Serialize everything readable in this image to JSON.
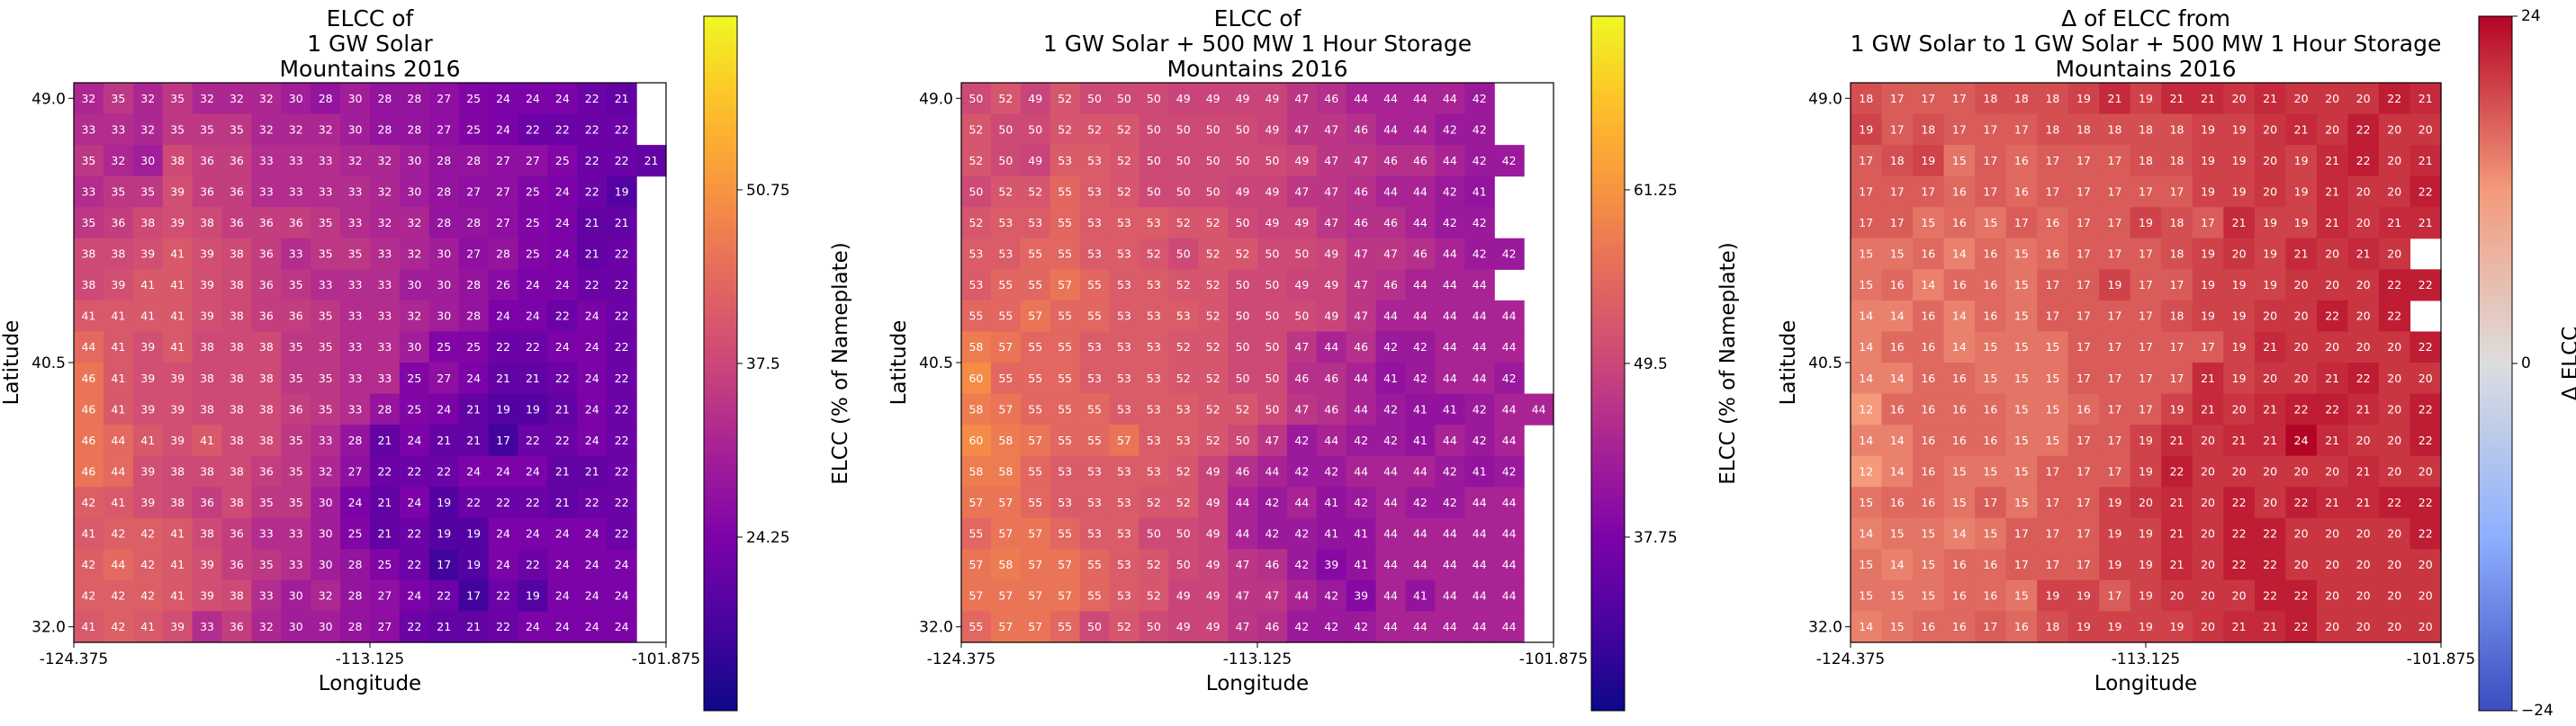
{
  "chart_data": [
    {
      "type": "heatmap",
      "title": [
        "ELCC of",
        "1 GW Solar",
        "Mountains 2016"
      ],
      "xlabel": "Longitude",
      "ylabel": "Latitude",
      "xticks": [
        "-124.375",
        "-113.125",
        "-101.875"
      ],
      "yticks": [
        "49.0",
        "40.5",
        "32.0"
      ],
      "colorbar": {
        "label": "ELCC (% of Nameplate)",
        "ticks": [
          "24.25",
          "37.5",
          "50.75"
        ],
        "range": [
          11.0,
          64.0
        ],
        "colormap": "plasma"
      },
      "values": [
        [
          32,
          35,
          32,
          35,
          32,
          32,
          32,
          30,
          28,
          30,
          28,
          28,
          27,
          25,
          24,
          24,
          24,
          22,
          21
        ],
        [
          33,
          33,
          32,
          35,
          35,
          35,
          32,
          32,
          32,
          30,
          28,
          28,
          27,
          25,
          24,
          22,
          22,
          22,
          22
        ],
        [
          35,
          32,
          30,
          38,
          36,
          36,
          33,
          33,
          33,
          32,
          32,
          30,
          28,
          28,
          27,
          27,
          25,
          22,
          22,
          21
        ],
        [
          33,
          35,
          35,
          39,
          36,
          36,
          33,
          33,
          33,
          33,
          32,
          30,
          28,
          27,
          27,
          25,
          24,
          22,
          19
        ],
        [
          35,
          36,
          38,
          39,
          38,
          36,
          36,
          36,
          35,
          33,
          32,
          32,
          28,
          28,
          27,
          25,
          24,
          21,
          21
        ],
        [
          38,
          38,
          39,
          41,
          39,
          38,
          36,
          33,
          35,
          35,
          33,
          32,
          30,
          27,
          28,
          25,
          24,
          21,
          22
        ],
        [
          38,
          39,
          41,
          41,
          39,
          38,
          36,
          35,
          33,
          33,
          33,
          30,
          30,
          28,
          26,
          24,
          24,
          22,
          22
        ],
        [
          41,
          41,
          41,
          41,
          39,
          38,
          36,
          36,
          35,
          33,
          33,
          32,
          30,
          28,
          24,
          24,
          22,
          24,
          22
        ],
        [
          44,
          41,
          39,
          41,
          38,
          38,
          38,
          35,
          35,
          33,
          33,
          30,
          25,
          25,
          22,
          22,
          24,
          24,
          22
        ],
        [
          46,
          41,
          39,
          39,
          38,
          38,
          38,
          35,
          35,
          33,
          33,
          25,
          27,
          24,
          21,
          21,
          22,
          24,
          22
        ],
        [
          46,
          41,
          39,
          39,
          38,
          38,
          38,
          36,
          35,
          33,
          28,
          25,
          24,
          21,
          19,
          19,
          21,
          24,
          22
        ],
        [
          46,
          44,
          41,
          39,
          41,
          38,
          38,
          35,
          33,
          28,
          21,
          24,
          21,
          21,
          17,
          22,
          22,
          24,
          22
        ],
        [
          46,
          44,
          39,
          38,
          38,
          38,
          36,
          35,
          32,
          27,
          22,
          22,
          22,
          24,
          24,
          24,
          21,
          21,
          22
        ],
        [
          42,
          41,
          39,
          38,
          36,
          38,
          35,
          35,
          30,
          24,
          21,
          24,
          19,
          22,
          22,
          22,
          21,
          22,
          22
        ],
        [
          41,
          42,
          42,
          41,
          38,
          36,
          33,
          33,
          30,
          25,
          21,
          22,
          19,
          19,
          24,
          24,
          24,
          24,
          22
        ],
        [
          42,
          44,
          42,
          41,
          39,
          36,
          35,
          33,
          30,
          28,
          25,
          22,
          17,
          19,
          24,
          22,
          24,
          24,
          24
        ],
        [
          42,
          42,
          42,
          41,
          39,
          38,
          33,
          30,
          32,
          28,
          27,
          24,
          22,
          17,
          22,
          19,
          24,
          24,
          24
        ],
        [
          41,
          42,
          41,
          39,
          33,
          36,
          32,
          30,
          30,
          28,
          27,
          22,
          21,
          21,
          22,
          24,
          24,
          24,
          24
        ]
      ]
    },
    {
      "type": "heatmap",
      "title": [
        "ELCC of",
        "1 GW Solar + 500 MW 1 Hour Storage",
        "Mountains 2016"
      ],
      "xlabel": "Longitude",
      "ylabel": "Latitude",
      "xticks": [
        "-124.375",
        "-113.125",
        "-101.875"
      ],
      "yticks": [
        "49.0",
        "40.5",
        "32.0"
      ],
      "colorbar": {
        "label": "ELCC (% of Nameplate)",
        "ticks": [
          "37.75",
          "49.5",
          "61.25"
        ],
        "range": [
          26.0,
          73.0
        ],
        "colormap": "plasma"
      },
      "values": [
        [
          50,
          52,
          49,
          52,
          50,
          50,
          50,
          49,
          49,
          49,
          49,
          47,
          46,
          44,
          44,
          44,
          44,
          42
        ],
        [
          52,
          50,
          50,
          52,
          52,
          52,
          50,
          50,
          50,
          50,
          49,
          47,
          47,
          46,
          44,
          44,
          42,
          42
        ],
        [
          52,
          50,
          49,
          53,
          53,
          52,
          50,
          50,
          50,
          50,
          50,
          49,
          47,
          47,
          46,
          46,
          44,
          42,
          42
        ],
        [
          50,
          52,
          52,
          55,
          53,
          52,
          50,
          50,
          50,
          49,
          49,
          47,
          47,
          46,
          44,
          44,
          42,
          41
        ],
        [
          52,
          53,
          53,
          55,
          53,
          53,
          53,
          52,
          52,
          50,
          49,
          49,
          47,
          46,
          46,
          44,
          42,
          42
        ],
        [
          53,
          53,
          55,
          55,
          53,
          53,
          52,
          50,
          52,
          52,
          50,
          50,
          49,
          47,
          47,
          46,
          44,
          42,
          42
        ],
        [
          53,
          55,
          55,
          57,
          55,
          53,
          53,
          52,
          52,
          50,
          50,
          49,
          49,
          47,
          46,
          44,
          44,
          44
        ],
        [
          55,
          55,
          57,
          55,
          55,
          53,
          53,
          53,
          52,
          50,
          50,
          50,
          49,
          47,
          44,
          44,
          44,
          44,
          44
        ],
        [
          58,
          57,
          55,
          55,
          53,
          53,
          53,
          52,
          52,
          50,
          50,
          47,
          44,
          46,
          42,
          42,
          44,
          44,
          44
        ],
        [
          60,
          55,
          55,
          55,
          53,
          53,
          53,
          52,
          52,
          50,
          50,
          46,
          46,
          44,
          41,
          42,
          44,
          44,
          42
        ],
        [
          58,
          57,
          55,
          55,
          55,
          53,
          53,
          53,
          52,
          52,
          50,
          47,
          46,
          44,
          42,
          41,
          41,
          42,
          44,
          44
        ],
        [
          60,
          58,
          57,
          55,
          55,
          57,
          53,
          53,
          52,
          50,
          47,
          42,
          44,
          42,
          42,
          41,
          44,
          42,
          44
        ],
        [
          58,
          58,
          55,
          53,
          53,
          53,
          53,
          52,
          49,
          46,
          44,
          42,
          42,
          44,
          44,
          44,
          42,
          41,
          42
        ],
        [
          57,
          57,
          55,
          53,
          53,
          53,
          52,
          52,
          49,
          44,
          42,
          44,
          41,
          42,
          44,
          42,
          42,
          44,
          44
        ],
        [
          55,
          57,
          57,
          55,
          53,
          53,
          50,
          50,
          49,
          44,
          42,
          42,
          41,
          41,
          44,
          44,
          44,
          44,
          44
        ],
        [
          57,
          58,
          57,
          57,
          55,
          53,
          52,
          50,
          49,
          47,
          46,
          42,
          39,
          41,
          44,
          44,
          44,
          44,
          44
        ],
        [
          57,
          57,
          57,
          57,
          55,
          53,
          52,
          49,
          49,
          47,
          47,
          44,
          42,
          39,
          44,
          41,
          44,
          44,
          44
        ],
        [
          55,
          57,
          57,
          55,
          50,
          52,
          50,
          49,
          49,
          47,
          46,
          42,
          42,
          42,
          44,
          44,
          44,
          44,
          44
        ]
      ]
    },
    {
      "type": "heatmap",
      "title": [
        "Δ of ELCC from",
        "1 GW Solar to 1 GW Solar + 500 MW 1 Hour Storage",
        "Mountains 2016"
      ],
      "xlabel": "Longitude",
      "ylabel": "Latitude",
      "xticks": [
        "-124.375",
        "-113.125",
        "-101.875"
      ],
      "yticks": [
        "49.0",
        "40.5",
        "32.0"
      ],
      "colorbar": {
        "label": "Δ ELCC",
        "ticks": [
          "24",
          "0",
          "−24"
        ],
        "range": [
          -24,
          24
        ],
        "colormap": "coolwarm"
      },
      "values": [
        [
          18,
          17,
          17,
          17,
          18,
          18,
          18,
          19,
          21,
          19,
          21,
          21,
          20,
          21,
          20,
          20,
          20,
          22,
          21
        ],
        [
          19,
          17,
          18,
          17,
          17,
          17,
          18,
          18,
          18,
          18,
          18,
          19,
          19,
          20,
          21,
          20,
          22,
          20,
          20
        ],
        [
          17,
          18,
          19,
          15,
          17,
          16,
          17,
          17,
          17,
          18,
          18,
          19,
          19,
          20,
          19,
          21,
          22,
          20,
          21
        ],
        [
          17,
          17,
          17,
          16,
          17,
          16,
          17,
          17,
          17,
          17,
          17,
          19,
          19,
          20,
          19,
          21,
          20,
          20,
          22
        ],
        [
          17,
          17,
          15,
          16,
          15,
          17,
          16,
          17,
          17,
          19,
          18,
          17,
          21,
          19,
          19,
          21,
          20,
          21,
          21
        ],
        [
          15,
          15,
          16,
          14,
          16,
          15,
          16,
          17,
          17,
          17,
          18,
          19,
          20,
          19,
          21,
          20,
          21,
          20
        ],
        [
          15,
          16,
          14,
          16,
          16,
          15,
          17,
          17,
          19,
          17,
          17,
          19,
          19,
          19,
          20,
          20,
          20,
          22,
          22
        ],
        [
          14,
          14,
          16,
          14,
          16,
          15,
          17,
          17,
          17,
          17,
          18,
          19,
          19,
          20,
          20,
          22,
          20,
          22
        ],
        [
          14,
          16,
          16,
          14,
          15,
          15,
          15,
          17,
          17,
          17,
          17,
          17,
          19,
          21,
          20,
          20,
          20,
          20,
          22
        ],
        [
          14,
          14,
          16,
          16,
          15,
          15,
          15,
          17,
          17,
          17,
          17,
          21,
          19,
          20,
          20,
          21,
          22,
          20,
          20
        ],
        [
          12,
          16,
          16,
          16,
          16,
          15,
          15,
          16,
          17,
          17,
          19,
          21,
          20,
          21,
          22,
          22,
          21,
          20,
          22
        ],
        [
          14,
          14,
          16,
          16,
          16,
          15,
          15,
          17,
          17,
          19,
          21,
          20,
          21,
          21,
          24,
          21,
          20,
          20,
          22
        ],
        [
          12,
          14,
          16,
          15,
          15,
          15,
          17,
          17,
          17,
          19,
          22,
          20,
          20,
          20,
          20,
          20,
          21,
          20,
          20
        ],
        [
          15,
          16,
          16,
          15,
          17,
          15,
          17,
          17,
          19,
          20,
          21,
          20,
          22,
          20,
          22,
          21,
          21,
          22,
          22
        ],
        [
          14,
          15,
          15,
          14,
          15,
          17,
          17,
          17,
          19,
          19,
          21,
          20,
          22,
          22,
          20,
          20,
          20,
          20,
          22
        ],
        [
          15,
          14,
          15,
          16,
          16,
          17,
          17,
          17,
          19,
          19,
          21,
          20,
          22,
          22,
          20,
          20,
          20,
          20,
          20
        ],
        [
          15,
          15,
          15,
          16,
          16,
          15,
          19,
          19,
          17,
          19,
          20,
          20,
          20,
          22,
          22,
          20,
          20,
          20,
          20
        ],
        [
          14,
          15,
          16,
          16,
          17,
          16,
          18,
          19,
          19,
          19,
          19,
          20,
          21,
          21,
          22,
          20,
          20,
          20,
          20
        ]
      ]
    }
  ]
}
